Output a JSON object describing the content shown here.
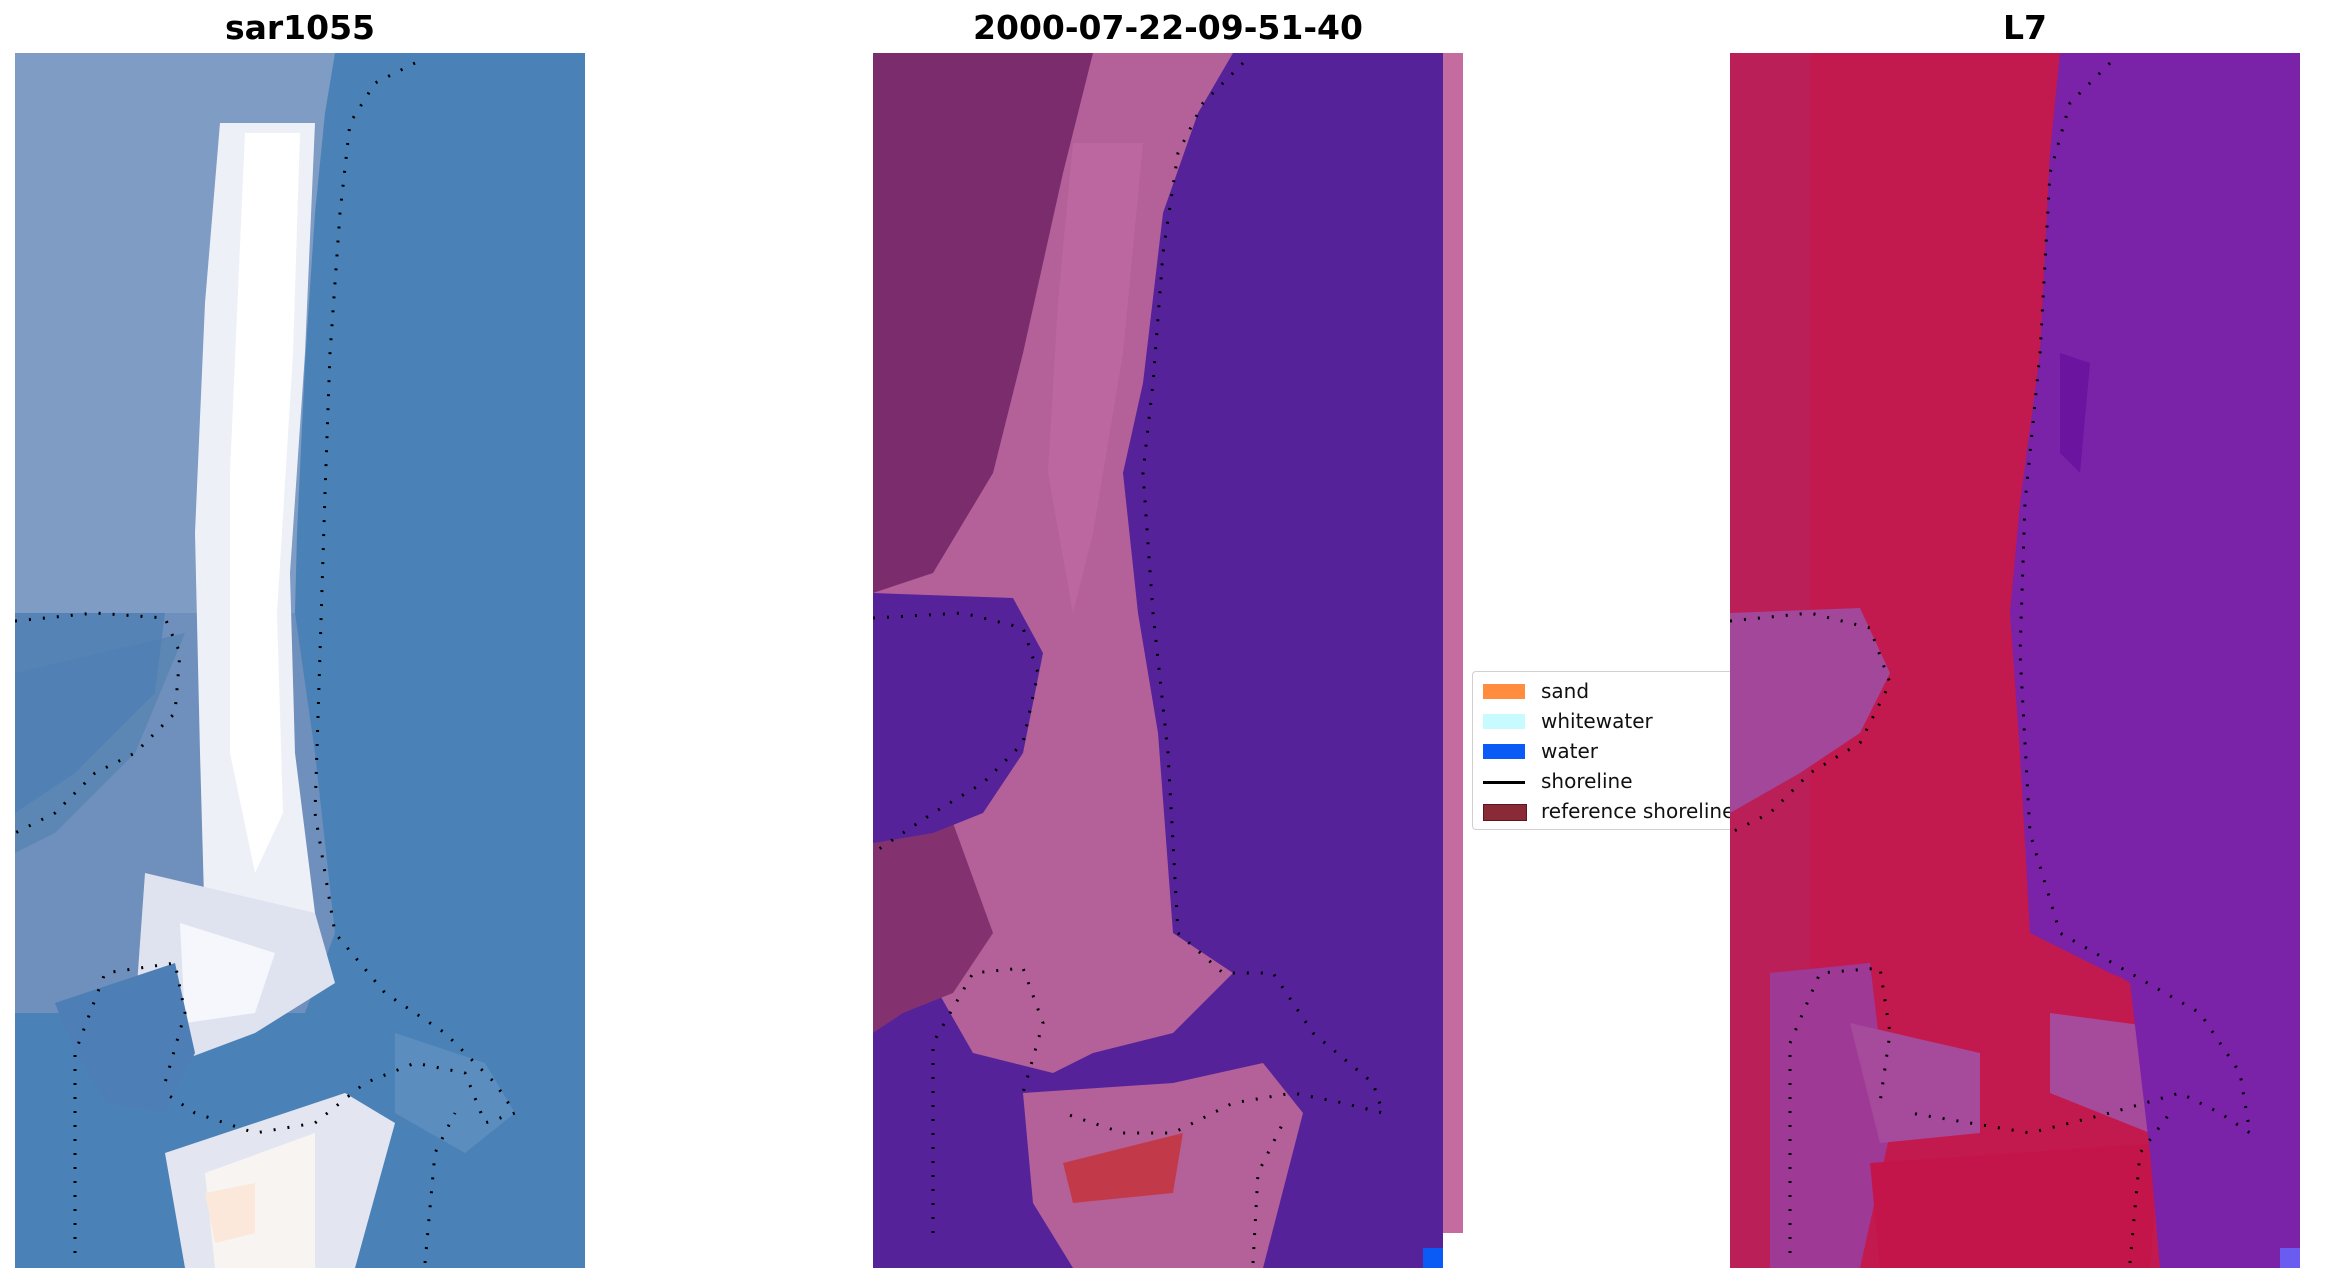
{
  "panels": [
    {
      "title": "sar1055"
    },
    {
      "title": "2000-07-22-09-51-40"
    },
    {
      "title": "L7"
    }
  ],
  "legend": {
    "items": [
      {
        "label": "sand",
        "color": "#ff8c3f"
      },
      {
        "label": "whitewater",
        "color": "#c8fbff"
      },
      {
        "label": "water",
        "color": "#0a5bf5"
      },
      {
        "label": "shoreline",
        "color": "#000000"
      },
      {
        "label": "reference shoreline",
        "color": "#8b2a37"
      }
    ]
  },
  "colors": {
    "rgb_water": "#4a82b8",
    "rgb_land": "#7e9cc4",
    "rgb_sand_bright": "#f4f5fb",
    "class_water": "#55229a",
    "class_land": "#b4619a",
    "class_land_dark": "#7b2c6c",
    "class_sand": "#c23a4a",
    "index_water": "#7a22a8",
    "index_land": "#c21a4e",
    "index_mixed": "#9e3a96"
  }
}
